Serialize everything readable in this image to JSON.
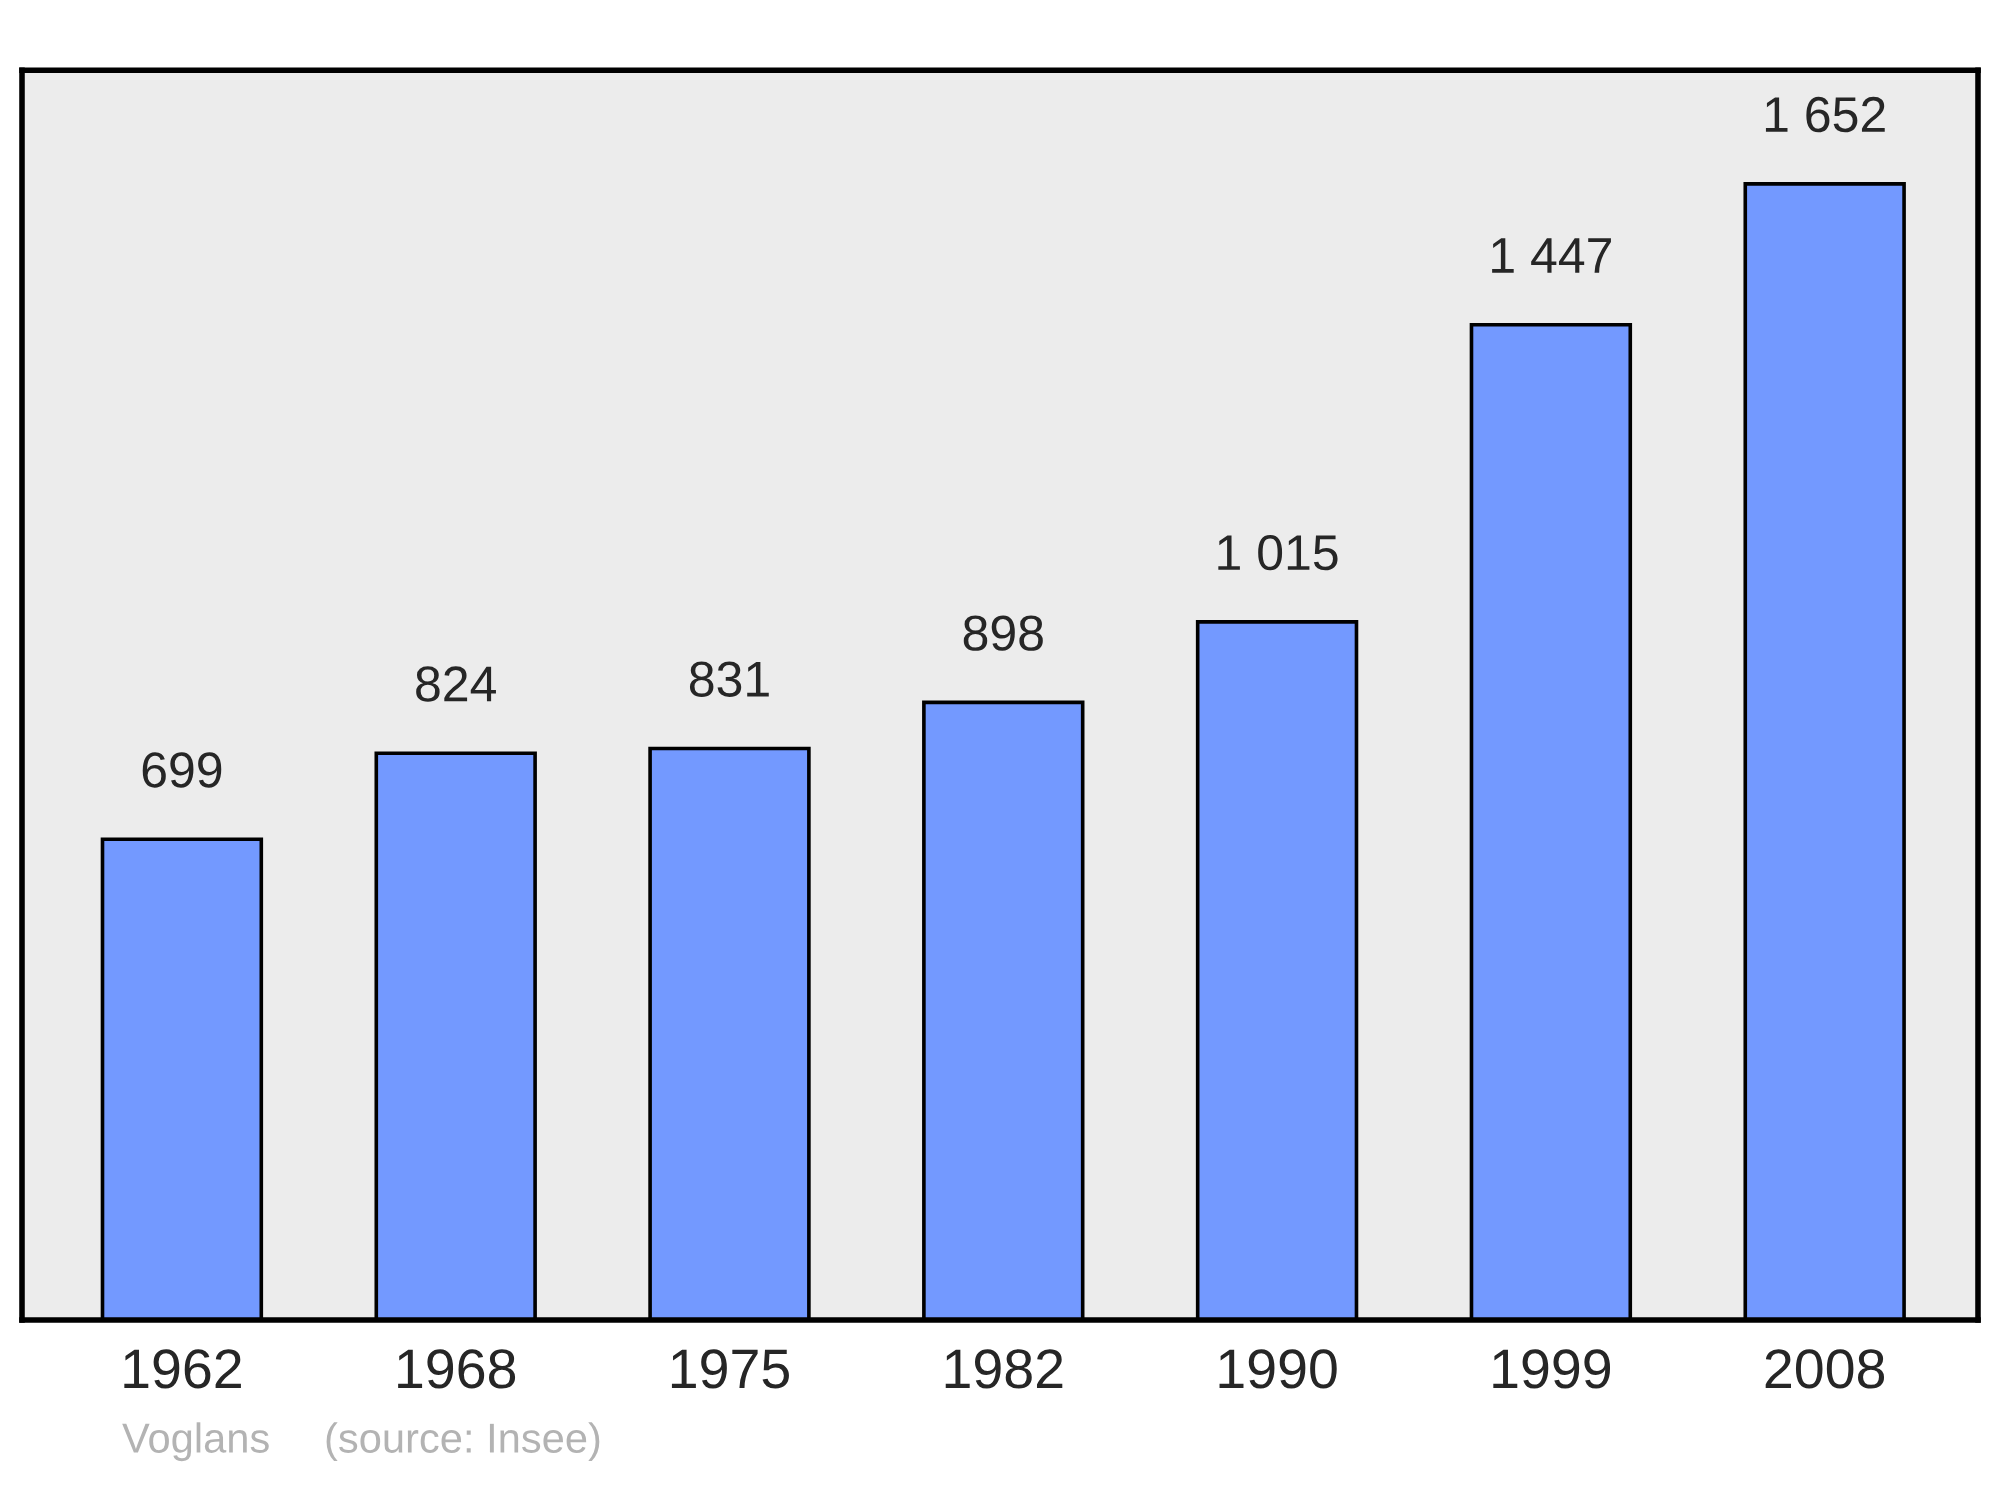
{
  "chart_data": {
    "type": "bar",
    "categories": [
      "1962",
      "1968",
      "1975",
      "1982",
      "1990",
      "1999",
      "2008"
    ],
    "values": [
      699,
      824,
      831,
      898,
      1015,
      1447,
      1652
    ],
    "value_labels": [
      "699",
      "824",
      "831",
      "898",
      "1 015",
      "1 447",
      "1 652"
    ],
    "color": "#7399ff",
    "annotations": [
      "Voglans",
      "(source: Insee)"
    ]
  }
}
